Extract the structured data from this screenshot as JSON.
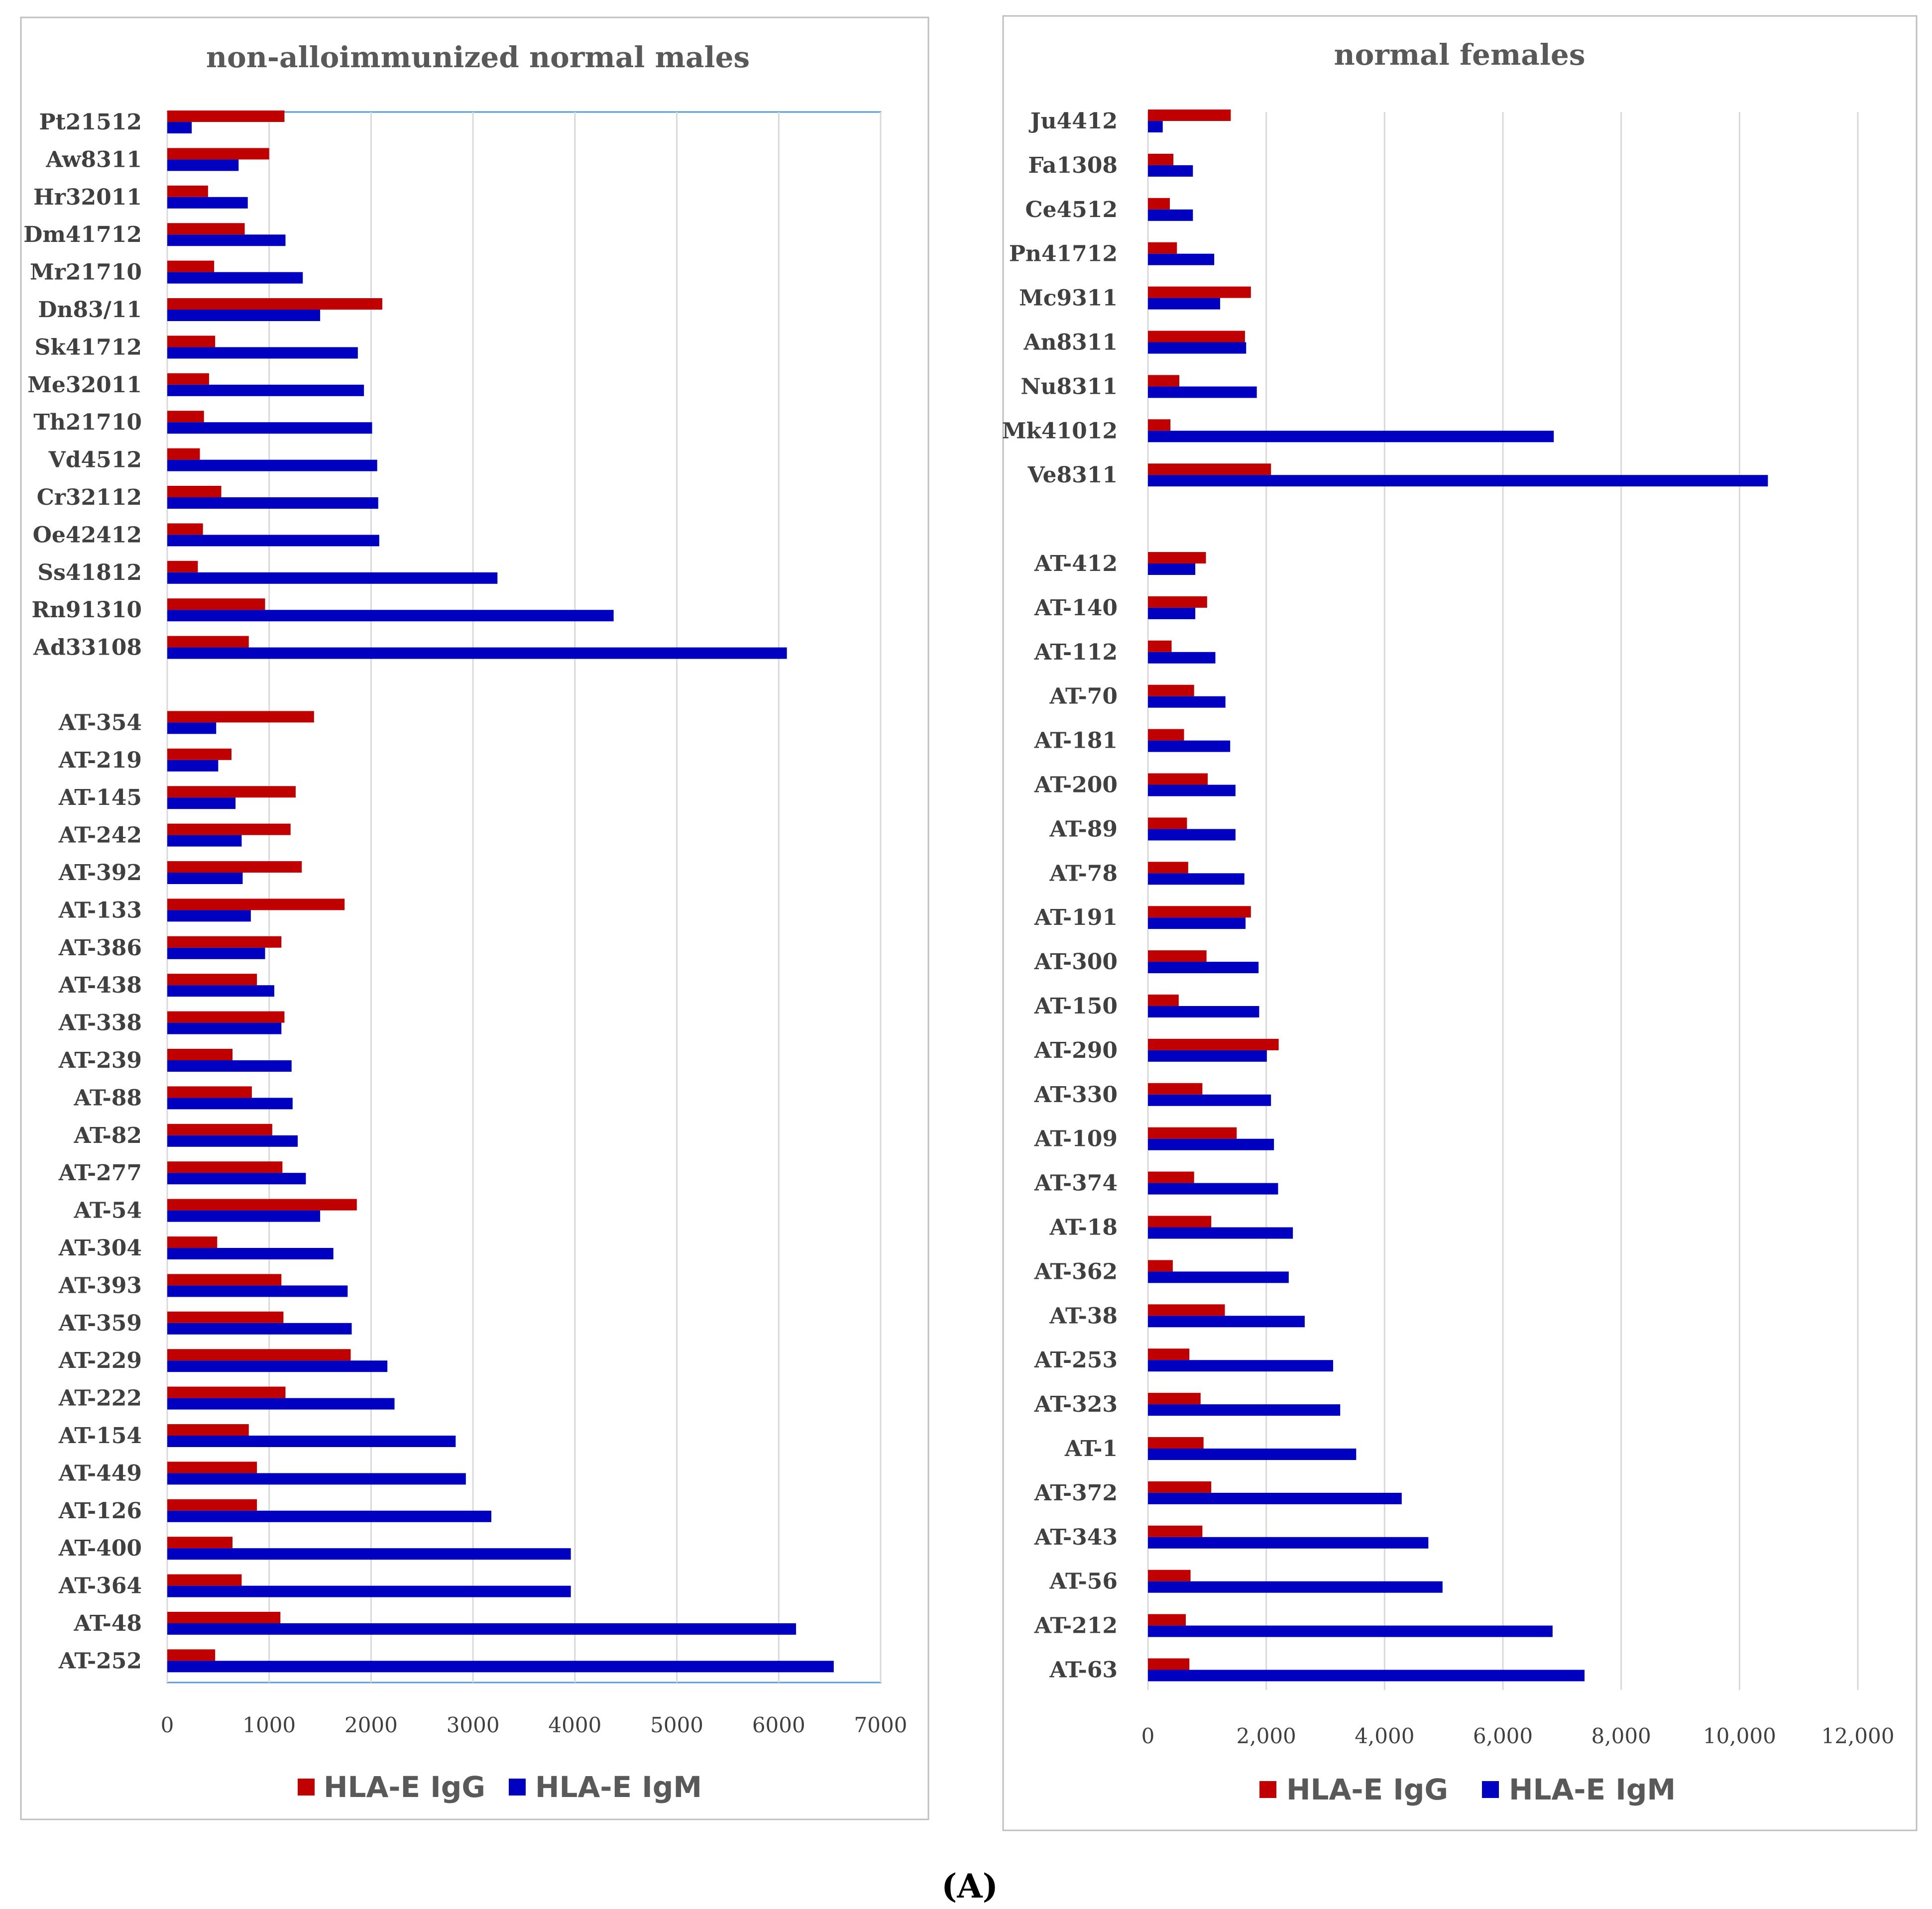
{
  "colors": {
    "igg": "#c00000",
    "igm": "#0000c0",
    "grid": "#d9d9d9",
    "frame": "#bfbfbf"
  },
  "figure_caption": "(A)",
  "chart_data": [
    {
      "type": "bar",
      "orientation": "horizontal",
      "title": "non-alloimmunized normal males",
      "xlim": [
        0,
        7000
      ],
      "xticks": [
        0,
        1000,
        2000,
        3000,
        4000,
        5000,
        6000,
        7000
      ],
      "xtick_labels": [
        "0",
        "1000",
        "2000",
        "3000",
        "4000",
        "5000",
        "6000",
        "7000"
      ],
      "legend": [
        "HLA-E IgG",
        "HLA-E IgM"
      ],
      "legend_position": "bottom",
      "categories": [
        "Pt21512",
        "Aw8311",
        "Hr32011",
        "Dm41712",
        "Mr21710",
        "Dn83/11",
        "Sk41712",
        "Me32011",
        "Th21710",
        "Vd4512",
        "Cr32112",
        "Oe42412",
        "Ss41812",
        "Rn91310",
        "Ad33108",
        "",
        "AT-354",
        "AT-219",
        "AT-145",
        "AT-242",
        "AT-392",
        "AT-133",
        "AT-386",
        "AT-438",
        "AT-338",
        "AT-239",
        "AT-88",
        "AT-82",
        "AT-277",
        "AT-54",
        "AT-304",
        "AT-393",
        "AT-359",
        "AT-229",
        "AT-222",
        "AT-154",
        "AT-449",
        "AT-126",
        "AT-400",
        "AT-364",
        "AT-48",
        "AT-252"
      ],
      "series": [
        {
          "name": "HLA-E IgG",
          "values": [
            1150,
            1000,
            400,
            760,
            460,
            2110,
            470,
            410,
            360,
            320,
            530,
            350,
            300,
            960,
            800,
            null,
            1440,
            630,
            1260,
            1210,
            1320,
            1740,
            1120,
            880,
            1150,
            640,
            830,
            1030,
            1130,
            1860,
            490,
            1120,
            1140,
            1800,
            1160,
            800,
            880,
            880,
            640,
            730,
            1110,
            470
          ]
        },
        {
          "name": "HLA-E IgM",
          "values": [
            240,
            700,
            790,
            1160,
            1330,
            1500,
            1870,
            1930,
            2010,
            2060,
            2070,
            2080,
            3240,
            4380,
            6080,
            null,
            480,
            500,
            670,
            730,
            740,
            820,
            960,
            1050,
            1120,
            1220,
            1230,
            1280,
            1360,
            1500,
            1630,
            1770,
            1810,
            2160,
            2230,
            2830,
            2930,
            3180,
            3960,
            3960,
            6170,
            6540
          ]
        }
      ]
    },
    {
      "type": "bar",
      "orientation": "horizontal",
      "title": "normal females",
      "xlim": [
        0,
        12000
      ],
      "xticks": [
        0,
        2000,
        4000,
        6000,
        8000,
        10000,
        12000
      ],
      "xtick_labels": [
        "0",
        "2,000",
        "4,000",
        "6,000",
        "8,000",
        "10,000",
        "12,000"
      ],
      "legend": [
        "HLA-E IgG",
        "HLA-E IgM"
      ],
      "legend_position": "bottom",
      "categories": [
        "Ju4412",
        "Fa1308",
        "Ce4512",
        "Pn41712",
        "Mc9311",
        "An8311",
        "Nu8311",
        "Mk41012",
        "Ve8311",
        "",
        "AT-412",
        "AT-140",
        "AT-112",
        "AT-70",
        "AT-181",
        "AT-200",
        "AT-89",
        "AT-78",
        "AT-191",
        "AT-300",
        "AT-150",
        "AT-290",
        "AT-330",
        "AT-109",
        "AT-374",
        "AT-18",
        "AT-362",
        "AT-38",
        "AT-253",
        "AT-323",
        "AT-1",
        "AT-372",
        "AT-343",
        "AT-56",
        "AT-212",
        "AT-63"
      ],
      "series": [
        {
          "name": "HLA-E IgG",
          "values": [
            1400,
            430,
            370,
            490,
            1740,
            1640,
            530,
            380,
            2080,
            null,
            980,
            1000,
            400,
            780,
            610,
            1010,
            660,
            680,
            1740,
            990,
            520,
            2210,
            920,
            1500,
            780,
            1070,
            420,
            1300,
            700,
            890,
            940,
            1070,
            920,
            720,
            640,
            700
          ]
        },
        {
          "name": "HLA-E IgM",
          "values": [
            250,
            760,
            760,
            1120,
            1220,
            1660,
            1840,
            6860,
            10480,
            null,
            800,
            800,
            1140,
            1310,
            1390,
            1480,
            1480,
            1630,
            1650,
            1870,
            1880,
            2010,
            2080,
            2130,
            2200,
            2450,
            2380,
            2650,
            3130,
            3250,
            3520,
            4290,
            4740,
            4980,
            6840,
            7380
          ]
        }
      ]
    }
  ]
}
